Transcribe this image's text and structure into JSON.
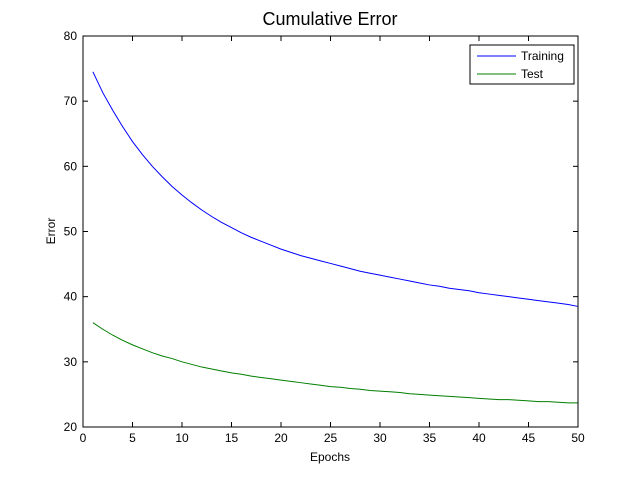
{
  "chart_data": {
    "type": "line",
    "title": "Cumulative Error",
    "xlabel": "Epochs",
    "ylabel": "Error",
    "xlim": [
      0,
      50
    ],
    "ylim": [
      20,
      80
    ],
    "xticks": [
      0,
      5,
      10,
      15,
      20,
      25,
      30,
      35,
      40,
      45,
      50
    ],
    "yticks": [
      20,
      30,
      40,
      50,
      60,
      70,
      80
    ],
    "grid": false,
    "legend_position": "top-right",
    "x": [
      1,
      2,
      3,
      4,
      5,
      6,
      7,
      8,
      9,
      10,
      11,
      12,
      13,
      14,
      15,
      16,
      17,
      18,
      19,
      20,
      21,
      22,
      23,
      24,
      25,
      26,
      27,
      28,
      29,
      30,
      31,
      32,
      33,
      34,
      35,
      36,
      37,
      38,
      39,
      40,
      41,
      42,
      43,
      44,
      45,
      46,
      47,
      48,
      49,
      50
    ],
    "series": [
      {
        "name": "Training",
        "color": "#0000ff",
        "values": [
          74.5,
          71.3,
          68.6,
          66.1,
          63.8,
          61.8,
          60.0,
          58.4,
          56.9,
          55.6,
          54.4,
          53.3,
          52.3,
          51.4,
          50.6,
          49.8,
          49.1,
          48.5,
          47.9,
          47.3,
          46.8,
          46.3,
          45.9,
          45.5,
          45.1,
          44.7,
          44.3,
          43.9,
          43.6,
          43.3,
          43.0,
          42.7,
          42.4,
          42.1,
          41.8,
          41.6,
          41.3,
          41.1,
          40.9,
          40.6,
          40.4,
          40.2,
          40.0,
          39.8,
          39.6,
          39.4,
          39.2,
          39.0,
          38.8,
          38.5
        ]
      },
      {
        "name": "Test",
        "color": "#007f00",
        "values": [
          36.0,
          35.0,
          34.1,
          33.3,
          32.6,
          32.0,
          31.4,
          30.9,
          30.5,
          30.0,
          29.6,
          29.2,
          28.9,
          28.6,
          28.3,
          28.1,
          27.8,
          27.6,
          27.4,
          27.2,
          27.0,
          26.8,
          26.6,
          26.4,
          26.2,
          26.1,
          25.9,
          25.8,
          25.6,
          25.5,
          25.4,
          25.3,
          25.1,
          25.0,
          24.9,
          24.8,
          24.7,
          24.6,
          24.5,
          24.4,
          24.3,
          24.2,
          24.2,
          24.1,
          24.0,
          23.9,
          23.9,
          23.8,
          23.7,
          23.7
        ]
      }
    ]
  }
}
